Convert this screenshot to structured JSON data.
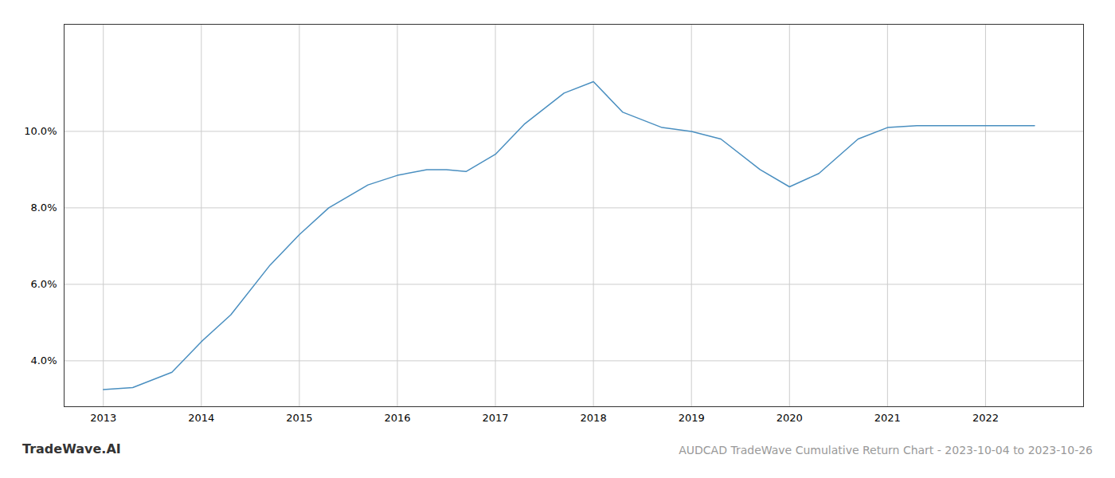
{
  "chart_data": {
    "type": "line",
    "title": "AUDCAD TradeWave Cumulative Return Chart - 2023-10-04 to 2023-10-26",
    "annotations": [
      "TradeWave.AI"
    ],
    "x": [
      2013.0,
      2013.3,
      2013.7,
      2014.0,
      2014.3,
      2014.7,
      2015.0,
      2015.3,
      2015.7,
      2016.0,
      2016.3,
      2016.5,
      2016.7,
      2017.0,
      2017.3,
      2017.7,
      2018.0,
      2018.3,
      2018.7,
      2019.0,
      2019.3,
      2019.7,
      2020.0,
      2020.3,
      2020.7,
      2021.0,
      2021.3,
      2021.7,
      2022.0,
      2022.5
    ],
    "values": [
      3.25,
      3.3,
      3.7,
      4.5,
      5.2,
      6.5,
      7.3,
      8.0,
      8.6,
      8.85,
      9.0,
      9.0,
      8.95,
      9.4,
      10.2,
      11.0,
      11.3,
      10.5,
      10.1,
      10.0,
      9.8,
      9.0,
      8.55,
      8.9,
      9.8,
      10.1,
      10.15,
      10.15,
      10.15,
      10.15
    ],
    "color": "#4a8fc0",
    "xlim": [
      2012.6,
      2023.0
    ],
    "xticks": [
      2013,
      2014,
      2015,
      2016,
      2017,
      2018,
      2019,
      2020,
      2021,
      2022
    ],
    "ylim": [
      2.8,
      12.8
    ],
    "yticks": [
      {
        "value": 4.0,
        "label": "4.0%"
      },
      {
        "value": 6.0,
        "label": "6.0%"
      },
      {
        "value": 8.0,
        "label": "8.0%"
      },
      {
        "value": 10.0,
        "label": "10.0%"
      }
    ],
    "grid": true
  }
}
